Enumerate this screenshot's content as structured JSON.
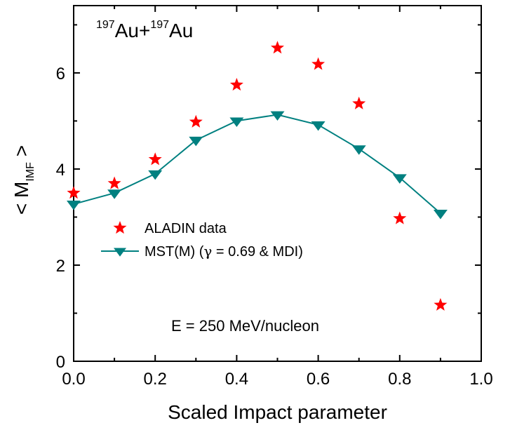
{
  "chart_data": {
    "type": "scatter",
    "title": "",
    "xlabel": "Scaled Impact parameter",
    "ylabel": {
      "pre": "< M",
      "sub": "IMF",
      "post": " >"
    },
    "xlim": [
      0.0,
      1.0
    ],
    "ylim": [
      0,
      7.4
    ],
    "xticks": [
      0.0,
      0.2,
      0.4,
      0.6,
      0.8,
      1.0
    ],
    "xtick_labels": [
      "0.0",
      "0.2",
      "0.4",
      "0.6",
      "0.8",
      "1.0"
    ],
    "yticks": [
      0,
      2,
      4,
      6
    ],
    "ytick_labels": [
      "0",
      "2",
      "4",
      "6"
    ],
    "grid": false,
    "legend_position": "center-left",
    "series": [
      {
        "name": "ALADIN data",
        "marker": "star",
        "line": false,
        "color": "#ff0000",
        "x": [
          0.0,
          0.1,
          0.2,
          0.3,
          0.4,
          0.5,
          0.6,
          0.7,
          0.8,
          0.9
        ],
        "y": [
          3.5,
          3.7,
          4.2,
          4.98,
          5.75,
          6.52,
          6.18,
          5.36,
          2.97,
          1.17
        ]
      },
      {
        "name_parts": {
          "pre": "MST(M) (",
          "greek": "γ",
          "post": " = 0.69 & MDI)"
        },
        "marker": "triangle-down",
        "line": true,
        "color": "#008080",
        "x": [
          0.0,
          0.1,
          0.2,
          0.3,
          0.4,
          0.5,
          0.6,
          0.7,
          0.8,
          0.9
        ],
        "y": [
          3.27,
          3.5,
          3.9,
          4.6,
          5.0,
          5.13,
          4.92,
          4.42,
          3.82,
          3.08
        ]
      }
    ],
    "annotations": {
      "system": {
        "sup1": "197",
        "el1": "Au+",
        "sup2": "197",
        "el2": "Au"
      },
      "energy": "E = 250 MeV/nucleon"
    }
  }
}
